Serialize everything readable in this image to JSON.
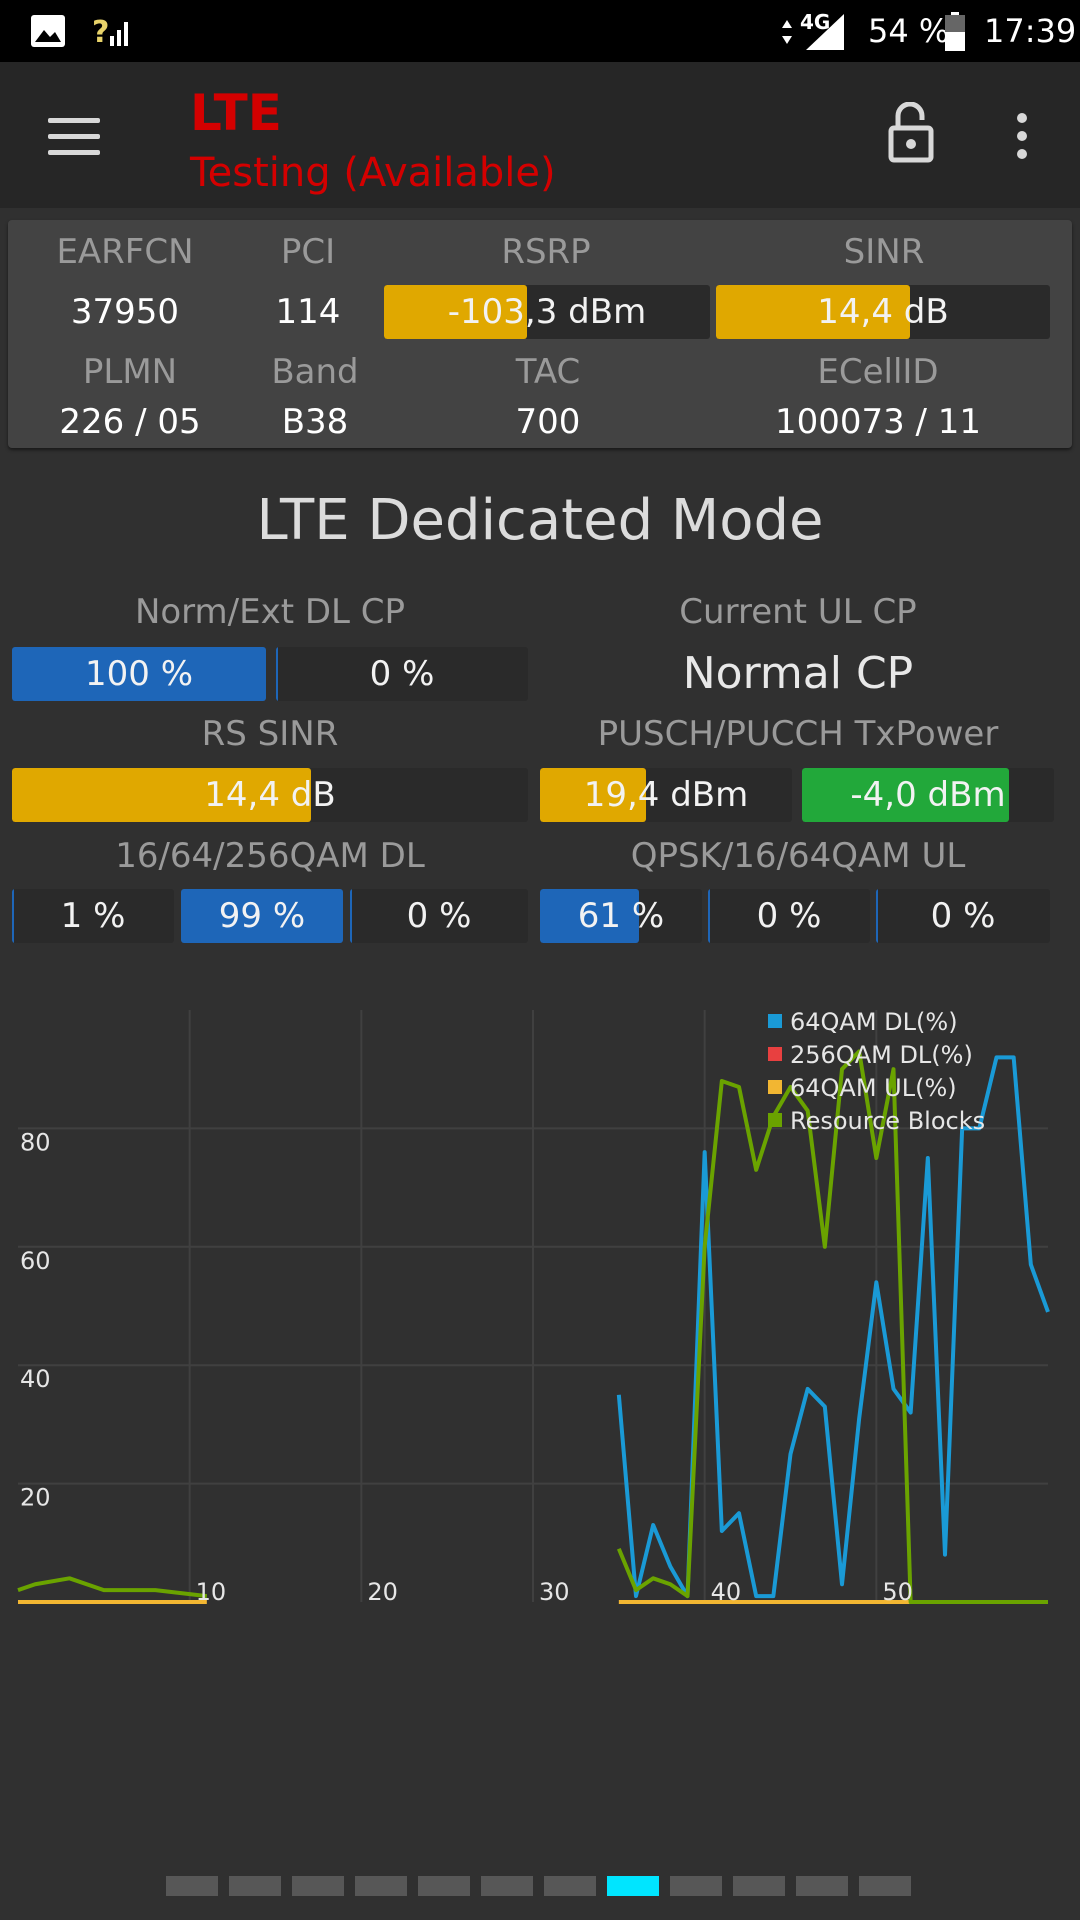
{
  "status_bar": {
    "icons": [
      "image-icon",
      "signal-unknown-icon",
      "data-arrows-icon",
      "lte-signal-icon",
      "battery-icon"
    ],
    "network_label": "4G",
    "battery": "54 %",
    "time": "17:39"
  },
  "app_bar": {
    "title": "LTE",
    "subtitle": "Testing (Available)",
    "title_color": "#d40000",
    "icons": [
      "menu-icon",
      "unlock-icon",
      "more-vert-icon"
    ]
  },
  "info": {
    "earfcn_label": "EARFCN",
    "earfcn": "37950",
    "pci_label": "PCI",
    "pci": "114",
    "rsrp_label": "RSRP",
    "rsrp": "-103,3 dBm",
    "rsrp_level": 0.44,
    "sinr_label": "SINR",
    "sinr": "14,4 dB",
    "sinr_level": 0.58,
    "plmn_label": "PLMN",
    "plmn": "226 / 05",
    "band_label": "Band",
    "band": "B38",
    "tac_label": "TAC",
    "tac": "700",
    "ecellid_label": "ECellID",
    "ecellid": "100073 / 11"
  },
  "mode_title": "LTE Dedicated Mode",
  "metrics": {
    "dl_cp_label": "Norm/Ext DL CP",
    "dl_cp_norm": "100 %",
    "dl_cp_ext": "0 %",
    "ul_cp_label": "Current UL CP",
    "ul_cp_value": "Normal CP",
    "rs_sinr_label": "RS SINR",
    "rs_sinr": "14,4 dB",
    "rs_sinr_level": 0.58,
    "txpower_label": "PUSCH/PUCCH TxPower",
    "pusch": "19,4 dBm",
    "pusch_level": 0.42,
    "pucch": "-4,0 dBm",
    "pucch_level": 0.82,
    "qam_dl_label": "16/64/256QAM DL",
    "qam16_dl": "1 %",
    "qam64_dl": "99 %",
    "qam256_dl": "0 %",
    "qam_ul_label": "QPSK/16/64QAM UL",
    "qpsk_ul": "61 %",
    "qpsk_ul_level": 0.61,
    "qam16_ul": "0 %",
    "qam64_ul": "0 %"
  },
  "colors": {
    "yellow": "#e0a800",
    "blue": "#1e66b8",
    "green": "#22a83a",
    "accent": "#00bfff"
  },
  "chart_data": {
    "type": "line",
    "xlim": [
      0,
      60
    ],
    "ylim": [
      0,
      100
    ],
    "x_ticks": [
      "10",
      "20",
      "30",
      "40",
      "50"
    ],
    "y_ticks": [
      "20",
      "40",
      "60",
      "80"
    ],
    "grid": true,
    "legend_position": "top-right",
    "series": [
      {
        "name": "64QAM DL(%)",
        "color": "#1a9ad6",
        "segments": [
          [
            [
              35,
              35
            ],
            [
              36,
              1
            ],
            [
              37,
              13
            ],
            [
              38,
              6
            ],
            [
              39,
              1
            ],
            [
              40,
              76
            ],
            [
              41,
              12
            ],
            [
              42,
              15
            ],
            [
              43,
              1
            ],
            [
              44,
              1
            ],
            [
              45,
              25
            ],
            [
              46,
              36
            ],
            [
              47,
              33
            ],
            [
              48,
              3
            ],
            [
              49,
              31
            ],
            [
              50,
              54
            ],
            [
              51,
              36
            ],
            [
              52,
              32
            ],
            [
              53,
              75
            ],
            [
              54,
              8
            ],
            [
              55,
              80
            ],
            [
              56,
              80
            ],
            [
              57,
              92
            ],
            [
              58,
              92
            ],
            [
              59,
              57
            ],
            [
              60,
              49
            ]
          ]
        ]
      },
      {
        "name": "256QAM DL(%)",
        "color": "#e84040",
        "segments": [
          [
            [
              0,
              0
            ],
            [
              3,
              0
            ]
          ]
        ]
      },
      {
        "name": "64QAM UL(%)",
        "color": "#f2b632",
        "segments": [
          [
            [
              0,
              0
            ],
            [
              11,
              0
            ]
          ],
          [
            [
              35,
              0
            ],
            [
              60,
              0
            ]
          ]
        ]
      },
      {
        "name": "Resource Blocks",
        "color": "#6aa300",
        "segments": [
          [
            [
              0,
              2
            ],
            [
              1,
              3
            ],
            [
              3,
              4
            ],
            [
              5,
              2
            ],
            [
              8,
              2
            ],
            [
              11,
              1
            ]
          ],
          [
            [
              35,
              9
            ],
            [
              36,
              2
            ],
            [
              37,
              4
            ],
            [
              38,
              3
            ],
            [
              39,
              1
            ],
            [
              40,
              60
            ],
            [
              41,
              88
            ],
            [
              42,
              87
            ],
            [
              43,
              73
            ],
            [
              44,
              82
            ],
            [
              45,
              87
            ],
            [
              46,
              83
            ],
            [
              47,
              60
            ],
            [
              48,
              90
            ],
            [
              49,
              93
            ],
            [
              50,
              75
            ],
            [
              51,
              90
            ],
            [
              52,
              0
            ],
            [
              60,
              0
            ]
          ]
        ]
      }
    ]
  },
  "pager": {
    "pages": 12,
    "active_index": 7,
    "active_color": "#00e5ff"
  }
}
